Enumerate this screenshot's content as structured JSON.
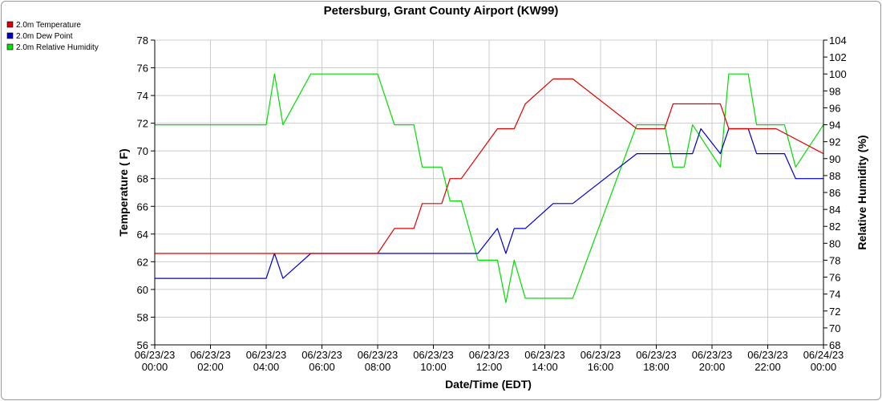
{
  "chart_data": {
    "type": "line",
    "title": "Petersburg, Grant County Airport (KW99)",
    "xlabel": "Date/Time (EDT)",
    "ylabel": "Temperature ( F)",
    "y2label": "Relative Humidity (%)",
    "xlim": [
      0,
      24
    ],
    "ylim": [
      56,
      78
    ],
    "y2lim": [
      68,
      104
    ],
    "grid": true,
    "legend_position": "top-left",
    "x_ticks": [
      {
        "value": 0,
        "date": "06/23/23",
        "time": "00:00"
      },
      {
        "value": 2,
        "date": "06/23/23",
        "time": "02:00"
      },
      {
        "value": 4,
        "date": "06/23/23",
        "time": "04:00"
      },
      {
        "value": 6,
        "date": "06/23/23",
        "time": "06:00"
      },
      {
        "value": 8,
        "date": "06/23/23",
        "time": "08:00"
      },
      {
        "value": 10,
        "date": "06/23/23",
        "time": "10:00"
      },
      {
        "value": 12,
        "date": "06/23/23",
        "time": "12:00"
      },
      {
        "value": 14,
        "date": "06/23/23",
        "time": "14:00"
      },
      {
        "value": 16,
        "date": "06/23/23",
        "time": "16:00"
      },
      {
        "value": 18,
        "date": "06/23/23",
        "time": "18:00"
      },
      {
        "value": 20,
        "date": "06/23/23",
        "time": "20:00"
      },
      {
        "value": 22,
        "date": "06/23/23",
        "time": "22:00"
      },
      {
        "value": 24,
        "date": "06/24/23",
        "time": "00:00"
      }
    ],
    "y_ticks": [
      "56",
      "58",
      "60",
      "62",
      "64",
      "66",
      "68",
      "70",
      "72",
      "74",
      "76",
      "78"
    ],
    "y2_ticks": [
      "68",
      "70",
      "72",
      "74",
      "76",
      "78",
      "80",
      "82",
      "84",
      "86",
      "88",
      "90",
      "92",
      "94",
      "96",
      "98",
      "100",
      "102",
      "104"
    ],
    "series": [
      {
        "name": "2.0m Temperature",
        "color": "#dd0000",
        "axis": "left",
        "points": [
          [
            0,
            62.6
          ],
          [
            8,
            62.6
          ],
          [
            8.6,
            64.4
          ],
          [
            9.3,
            64.4
          ],
          [
            9.6,
            66.2
          ],
          [
            10.3,
            66.2
          ],
          [
            10.6,
            68
          ],
          [
            11,
            68
          ],
          [
            12.3,
            71.6
          ],
          [
            12.9,
            71.6
          ],
          [
            13.3,
            73.4
          ],
          [
            14.3,
            75.2
          ],
          [
            15,
            75.2
          ],
          [
            17.3,
            71.6
          ],
          [
            18.3,
            71.6
          ],
          [
            18.6,
            73.4
          ],
          [
            20.3,
            73.4
          ],
          [
            20.6,
            71.6
          ],
          [
            22.3,
            71.6
          ],
          [
            24,
            69.8
          ]
        ]
      },
      {
        "name": "2.0m Dew Point",
        "color": "#0000cc",
        "axis": "left",
        "points": [
          [
            0,
            60.8
          ],
          [
            4,
            60.8
          ],
          [
            4.3,
            62.6
          ],
          [
            4.6,
            60.8
          ],
          [
            5.6,
            62.6
          ],
          [
            11.6,
            62.6
          ],
          [
            12.3,
            64.4
          ],
          [
            12.6,
            62.6
          ],
          [
            12.9,
            64.4
          ],
          [
            13.3,
            64.4
          ],
          [
            14.3,
            66.2
          ],
          [
            15,
            66.2
          ],
          [
            17.3,
            69.8
          ],
          [
            18.3,
            69.8
          ],
          [
            19.3,
            69.8
          ],
          [
            19.6,
            71.6
          ],
          [
            20.3,
            69.8
          ],
          [
            20.6,
            71.6
          ],
          [
            21.3,
            71.6
          ],
          [
            21.6,
            69.8
          ],
          [
            22.6,
            69.8
          ],
          [
            23,
            68
          ],
          [
            24,
            68
          ]
        ]
      },
      {
        "name": "2.0m Relative Humidity",
        "color": "#00dd00",
        "axis": "right",
        "points": [
          [
            0,
            94
          ],
          [
            4,
            94
          ],
          [
            4.3,
            100
          ],
          [
            4.6,
            94
          ],
          [
            5.6,
            100
          ],
          [
            8,
            100
          ],
          [
            8.6,
            94
          ],
          [
            9.3,
            94
          ],
          [
            9.6,
            89
          ],
          [
            10.3,
            89
          ],
          [
            10.6,
            85
          ],
          [
            11,
            85
          ],
          [
            11.6,
            78
          ],
          [
            12.3,
            78
          ],
          [
            12.6,
            73
          ],
          [
            12.9,
            78
          ],
          [
            13.3,
            73.5
          ],
          [
            15,
            73.5
          ],
          [
            17.3,
            94
          ],
          [
            18.3,
            94
          ],
          [
            18.6,
            89
          ],
          [
            19,
            89
          ],
          [
            19.3,
            94
          ],
          [
            20.3,
            89
          ],
          [
            20.6,
            100
          ],
          [
            21.3,
            100
          ],
          [
            21.6,
            94
          ],
          [
            22.6,
            94
          ],
          [
            23,
            89
          ],
          [
            24,
            94
          ]
        ]
      }
    ]
  }
}
